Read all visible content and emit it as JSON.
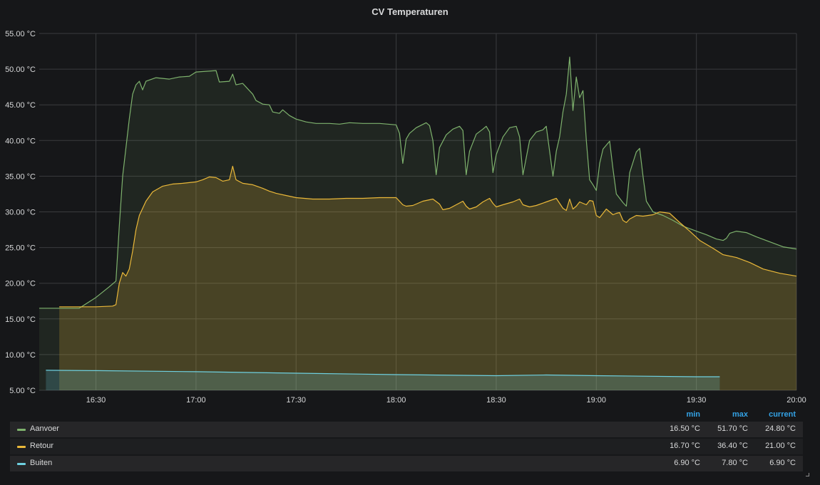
{
  "panel": {
    "title": "CV Temperaturen"
  },
  "legend": {
    "headers": {
      "min": "min",
      "max": "max",
      "current": "current"
    },
    "rows": [
      {
        "name": "Aanvoer",
        "color": "#7eb26d",
        "min": "16.50 °C",
        "max": "51.70 °C",
        "current": "24.80 °C"
      },
      {
        "name": "Retour",
        "color": "#eab839",
        "min": "16.70 °C",
        "max": "36.40 °C",
        "current": "21.00 °C"
      },
      {
        "name": "Buiten",
        "color": "#6ed0e0",
        "min": "6.90 °C",
        "max": "7.80 °C",
        "current": "6.90 °C"
      }
    ]
  },
  "chart_data": {
    "type": "area",
    "title": "CV Temperaturen",
    "xlabel": "",
    "ylabel": "",
    "ylim": [
      5,
      55
    ],
    "xlim": [
      "16:13",
      "20:00"
    ],
    "grid": true,
    "legend_position": "bottom",
    "x_ticks": [
      "16:30",
      "17:00",
      "17:30",
      "18:00",
      "18:30",
      "19:00",
      "19:30",
      "20:00"
    ],
    "y_ticks": [
      "5.00 °C",
      "10.00 °C",
      "15.00 °C",
      "20.00 °C",
      "25.00 °C",
      "30.00 °C",
      "35.00 °C",
      "40.00 °C",
      "45.00 °C",
      "50.00 °C",
      "55.00 °C"
    ],
    "series": [
      {
        "name": "Aanvoer",
        "color": "#7eb26d",
        "points": [
          [
            "16:13",
            16.5
          ],
          [
            "16:20",
            16.5
          ],
          [
            "16:25",
            16.5
          ],
          [
            "16:30",
            18.0
          ],
          [
            "16:34",
            19.5
          ],
          [
            "16:36",
            20.3
          ],
          [
            "16:37",
            28.0
          ],
          [
            "16:38",
            35.0
          ],
          [
            "16:40",
            43.0
          ],
          [
            "16:41",
            46.5
          ],
          [
            "16:42",
            47.8
          ],
          [
            "16:43",
            48.3
          ],
          [
            "16:44",
            47.1
          ],
          [
            "16:45",
            48.3
          ],
          [
            "16:48",
            48.8
          ],
          [
            "16:52",
            48.6
          ],
          [
            "16:55",
            48.9
          ],
          [
            "16:58",
            49.0
          ],
          [
            "17:00",
            49.6
          ],
          [
            "17:03",
            49.7
          ],
          [
            "17:06",
            49.8
          ],
          [
            "17:07",
            48.2
          ],
          [
            "17:10",
            48.3
          ],
          [
            "17:11",
            49.3
          ],
          [
            "17:12",
            47.8
          ],
          [
            "17:14",
            48.0
          ],
          [
            "17:15",
            47.5
          ],
          [
            "17:17",
            46.5
          ],
          [
            "17:18",
            45.6
          ],
          [
            "17:20",
            45.1
          ],
          [
            "17:22",
            45.0
          ],
          [
            "17:23",
            44.0
          ],
          [
            "17:25",
            43.8
          ],
          [
            "17:26",
            44.3
          ],
          [
            "17:28",
            43.5
          ],
          [
            "17:30",
            43.0
          ],
          [
            "17:33",
            42.6
          ],
          [
            "17:36",
            42.4
          ],
          [
            "17:40",
            42.4
          ],
          [
            "17:43",
            42.3
          ],
          [
            "17:46",
            42.5
          ],
          [
            "17:50",
            42.4
          ],
          [
            "17:55",
            42.4
          ],
          [
            "18:00",
            42.2
          ],
          [
            "18:01",
            41.0
          ],
          [
            "18:02",
            36.8
          ],
          [
            "18:03",
            40.2
          ],
          [
            "18:04",
            41.0
          ],
          [
            "18:06",
            41.8
          ],
          [
            "18:09",
            42.5
          ],
          [
            "18:10",
            42.1
          ],
          [
            "18:11",
            40.0
          ],
          [
            "18:12",
            35.2
          ],
          [
            "18:13",
            39.0
          ],
          [
            "18:15",
            40.8
          ],
          [
            "18:17",
            41.6
          ],
          [
            "18:19",
            42.0
          ],
          [
            "18:20",
            41.4
          ],
          [
            "18:21",
            35.2
          ],
          [
            "18:22",
            38.5
          ],
          [
            "18:24",
            40.9
          ],
          [
            "18:26",
            41.6
          ],
          [
            "18:27",
            42.0
          ],
          [
            "18:28",
            41.2
          ],
          [
            "18:29",
            35.5
          ],
          [
            "18:30",
            38.0
          ],
          [
            "18:32",
            40.5
          ],
          [
            "18:34",
            41.8
          ],
          [
            "18:36",
            42.0
          ],
          [
            "18:37",
            40.5
          ],
          [
            "18:38",
            35.2
          ],
          [
            "18:40",
            40.0
          ],
          [
            "18:42",
            41.2
          ],
          [
            "18:44",
            41.5
          ],
          [
            "18:45",
            42.0
          ],
          [
            "18:46",
            38.5
          ],
          [
            "18:47",
            35.0
          ],
          [
            "18:48",
            38.5
          ],
          [
            "18:49",
            40.5
          ],
          [
            "18:50",
            44.0
          ],
          [
            "18:51",
            46.5
          ],
          [
            "18:52",
            51.7
          ],
          [
            "18:53",
            44.2
          ],
          [
            "18:54",
            48.9
          ],
          [
            "18:55",
            46.0
          ],
          [
            "18:56",
            47.0
          ],
          [
            "18:57",
            40.0
          ],
          [
            "18:58",
            34.5
          ],
          [
            "18:59",
            33.8
          ],
          [
            "19:00",
            33.0
          ],
          [
            "19:01",
            36.8
          ],
          [
            "19:02",
            38.8
          ],
          [
            "19:04",
            39.9
          ],
          [
            "19:05",
            36.0
          ],
          [
            "19:06",
            32.5
          ],
          [
            "19:08",
            31.3
          ],
          [
            "19:09",
            30.8
          ],
          [
            "19:10",
            35.5
          ],
          [
            "19:12",
            38.4
          ],
          [
            "19:13",
            38.9
          ],
          [
            "19:14",
            35.0
          ],
          [
            "19:15",
            31.5
          ],
          [
            "19:17",
            30.0
          ],
          [
            "19:20",
            29.5
          ],
          [
            "19:23",
            28.8
          ],
          [
            "19:26",
            28.0
          ],
          [
            "19:30",
            27.3
          ],
          [
            "19:33",
            26.8
          ],
          [
            "19:36",
            26.2
          ],
          [
            "19:38",
            26.0
          ],
          [
            "19:39",
            26.3
          ],
          [
            "19:40",
            27.0
          ],
          [
            "19:42",
            27.3
          ],
          [
            "19:45",
            27.1
          ],
          [
            "19:48",
            26.5
          ],
          [
            "19:52",
            25.8
          ],
          [
            "19:56",
            25.1
          ],
          [
            "20:00",
            24.8
          ]
        ]
      },
      {
        "name": "Retour",
        "color": "#eab839",
        "points": [
          [
            "16:19",
            16.7
          ],
          [
            "16:25",
            16.7
          ],
          [
            "16:30",
            16.7
          ],
          [
            "16:35",
            16.8
          ],
          [
            "16:36",
            17.0
          ],
          [
            "16:37",
            20.0
          ],
          [
            "16:38",
            21.5
          ],
          [
            "16:39",
            21.0
          ],
          [
            "16:40",
            22.0
          ],
          [
            "16:41",
            24.5
          ],
          [
            "16:42",
            27.5
          ],
          [
            "16:43",
            29.5
          ],
          [
            "16:45",
            31.5
          ],
          [
            "16:47",
            32.8
          ],
          [
            "16:50",
            33.6
          ],
          [
            "16:53",
            33.9
          ],
          [
            "16:56",
            34.0
          ],
          [
            "17:00",
            34.2
          ],
          [
            "17:02",
            34.5
          ],
          [
            "17:04",
            34.9
          ],
          [
            "17:06",
            34.8
          ],
          [
            "17:08",
            34.3
          ],
          [
            "17:10",
            34.5
          ],
          [
            "17:11",
            36.4
          ],
          [
            "17:12",
            34.5
          ],
          [
            "17:14",
            34.0
          ],
          [
            "17:17",
            33.8
          ],
          [
            "17:20",
            33.3
          ],
          [
            "17:22",
            32.9
          ],
          [
            "17:24",
            32.6
          ],
          [
            "17:27",
            32.3
          ],
          [
            "17:30",
            32.0
          ],
          [
            "17:35",
            31.8
          ],
          [
            "17:40",
            31.8
          ],
          [
            "17:45",
            31.9
          ],
          [
            "17:50",
            31.9
          ],
          [
            "17:55",
            32.0
          ],
          [
            "18:00",
            32.0
          ],
          [
            "18:02",
            31.0
          ],
          [
            "18:03",
            30.8
          ],
          [
            "18:05",
            30.9
          ],
          [
            "18:08",
            31.5
          ],
          [
            "18:11",
            31.8
          ],
          [
            "18:13",
            31.1
          ],
          [
            "18:14",
            30.3
          ],
          [
            "18:16",
            30.5
          ],
          [
            "18:18",
            31.0
          ],
          [
            "18:20",
            31.5
          ],
          [
            "18:21",
            30.8
          ],
          [
            "18:22",
            30.4
          ],
          [
            "18:24",
            30.7
          ],
          [
            "18:26",
            31.4
          ],
          [
            "18:28",
            31.9
          ],
          [
            "18:29",
            31.2
          ],
          [
            "18:30",
            30.7
          ],
          [
            "18:32",
            31.0
          ],
          [
            "18:35",
            31.4
          ],
          [
            "18:37",
            31.8
          ],
          [
            "18:38",
            31.0
          ],
          [
            "18:40",
            30.7
          ],
          [
            "18:42",
            30.9
          ],
          [
            "18:45",
            31.4
          ],
          [
            "18:48",
            31.9
          ],
          [
            "18:50",
            30.5
          ],
          [
            "18:51",
            30.2
          ],
          [
            "18:52",
            31.8
          ],
          [
            "18:53",
            30.4
          ],
          [
            "18:54",
            30.8
          ],
          [
            "18:55",
            31.4
          ],
          [
            "18:57",
            31.0
          ],
          [
            "18:58",
            31.6
          ],
          [
            "18:59",
            31.5
          ],
          [
            "19:00",
            29.5
          ],
          [
            "19:01",
            29.2
          ],
          [
            "19:02",
            29.8
          ],
          [
            "19:03",
            30.4
          ],
          [
            "19:04",
            30.0
          ],
          [
            "19:05",
            29.6
          ],
          [
            "19:06",
            29.8
          ],
          [
            "19:07",
            29.9
          ],
          [
            "19:08",
            28.8
          ],
          [
            "19:09",
            28.5
          ],
          [
            "19:10",
            29.0
          ],
          [
            "19:12",
            29.5
          ],
          [
            "19:14",
            29.4
          ],
          [
            "19:17",
            29.6
          ],
          [
            "19:19",
            30.0
          ],
          [
            "19:22",
            29.8
          ],
          [
            "19:25",
            28.5
          ],
          [
            "19:28",
            27.3
          ],
          [
            "19:31",
            26.0
          ],
          [
            "19:35",
            24.9
          ],
          [
            "19:38",
            24.0
          ],
          [
            "19:42",
            23.6
          ],
          [
            "19:46",
            22.9
          ],
          [
            "19:50",
            22.0
          ],
          [
            "19:55",
            21.4
          ],
          [
            "20:00",
            21.0
          ]
        ]
      },
      {
        "name": "Buiten",
        "color": "#6ed0e0",
        "points": [
          [
            "16:15",
            7.8
          ],
          [
            "16:30",
            7.75
          ],
          [
            "17:00",
            7.6
          ],
          [
            "17:30",
            7.4
          ],
          [
            "18:00",
            7.2
          ],
          [
            "18:30",
            7.05
          ],
          [
            "18:45",
            7.15
          ],
          [
            "19:00",
            7.05
          ],
          [
            "19:30",
            6.9
          ],
          [
            "19:37",
            6.9
          ]
        ]
      }
    ]
  }
}
